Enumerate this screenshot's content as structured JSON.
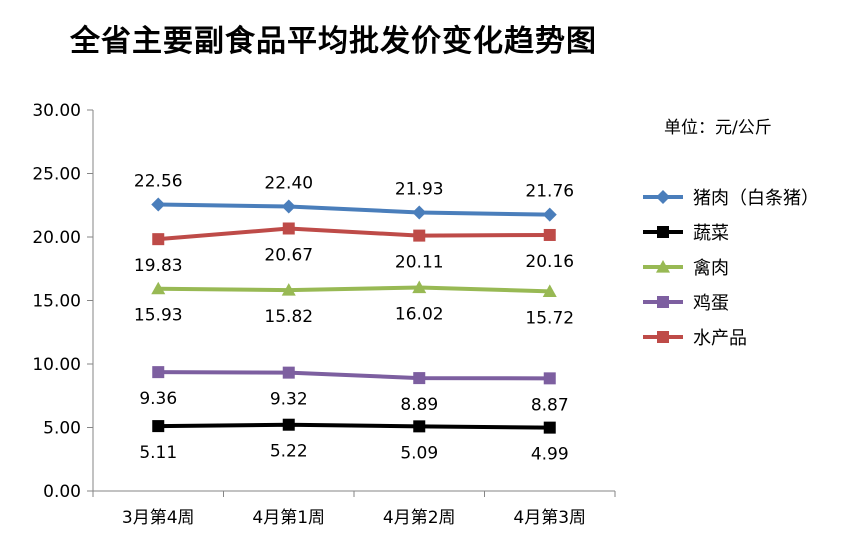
{
  "unit_label": "单位：元/公斤",
  "chart_data": {
    "type": "line",
    "title": "全省主要副食品平均批发价变化趋势图",
    "xlabel": "",
    "ylabel": "",
    "categories": [
      "3月第4周",
      "4月第1周",
      "4月第2周",
      "4月第3周"
    ],
    "ylim": [
      0,
      30
    ],
    "yticks": [
      "0.00",
      "5.00",
      "10.00",
      "15.00",
      "20.00",
      "25.00",
      "30.00"
    ],
    "legend_position": "right",
    "series": [
      {
        "name": "猪肉（白条猪）",
        "values": [
          22.56,
          22.4,
          21.93,
          21.76
        ],
        "labels": [
          "22.56",
          "22.40",
          "21.93",
          "21.76"
        ],
        "color": "#4a7ebb",
        "marker": "diamond",
        "label_pos": "above"
      },
      {
        "name": "蔬菜",
        "values": [
          5.11,
          5.22,
          5.09,
          4.99
        ],
        "labels": [
          "5.11",
          "5.22",
          "5.09",
          "4.99"
        ],
        "color": "#000000",
        "marker": "square",
        "label_pos": "below"
      },
      {
        "name": "禽肉",
        "values": [
          15.93,
          15.82,
          16.02,
          15.72
        ],
        "labels": [
          "15.93",
          "15.82",
          "16.02",
          "15.72"
        ],
        "color": "#98b954",
        "marker": "triangle",
        "label_pos": "below"
      },
      {
        "name": "鸡蛋",
        "values": [
          9.36,
          9.32,
          8.89,
          8.87
        ],
        "labels": [
          "9.36",
          "9.32",
          "8.89",
          "8.87"
        ],
        "color": "#7d5fa0",
        "marker": "square",
        "label_pos": "below"
      },
      {
        "name": "水产品",
        "values": [
          19.83,
          20.67,
          20.11,
          20.16
        ],
        "labels": [
          "19.83",
          "20.67",
          "20.11",
          "20.16"
        ],
        "color": "#be4b48",
        "marker": "square",
        "label_pos": "below"
      }
    ]
  }
}
